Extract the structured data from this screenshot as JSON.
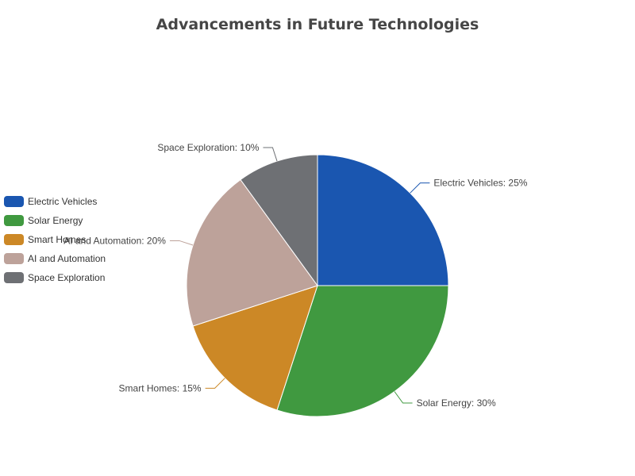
{
  "chart_data": {
    "type": "pie",
    "title": "Advancements in Future Technologies",
    "slices": [
      {
        "name": "Electric Vehicles",
        "value": 25,
        "label": "Electric Vehicles: 25%",
        "color": "#1a56b0"
      },
      {
        "name": "Solar Energy",
        "value": 30,
        "label": "Solar Energy: 30%",
        "color": "#409940"
      },
      {
        "name": "Smart Homes",
        "value": 15,
        "label": "Smart Homes: 15%",
        "color": "#cc8826"
      },
      {
        "name": "AI and Automation",
        "value": 20,
        "label": "AI and Automation: 20%",
        "color": "#bda29a"
      },
      {
        "name": "Space Exploration",
        "value": 10,
        "label": "Space Exploration: 10%",
        "color": "#6e7074"
      }
    ],
    "legend_position": "left"
  }
}
